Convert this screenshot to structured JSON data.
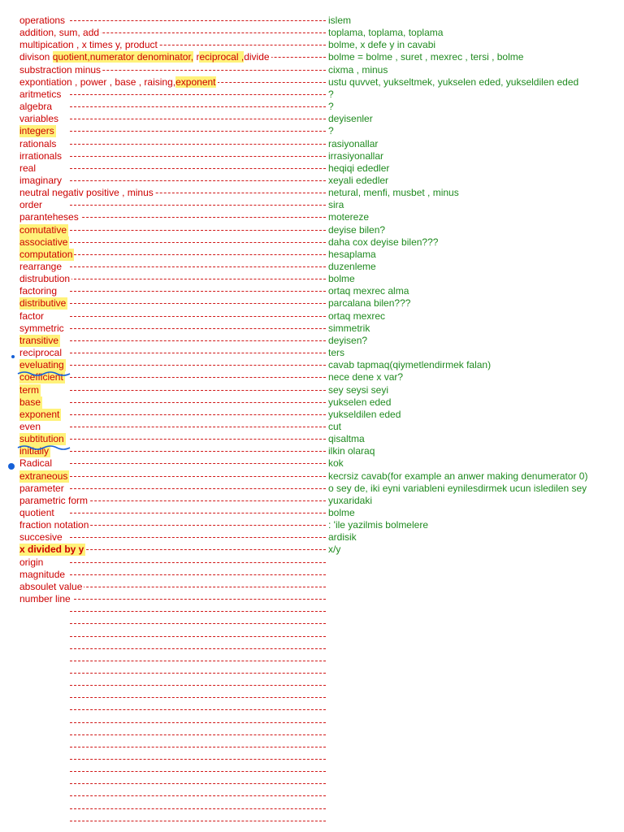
{
  "colors": {
    "term_text": "#cc0000",
    "definition_text": "#1f8a1f",
    "dashed_rule": "#d01818",
    "highlight": "#fff27a",
    "pen_ink": "#1560d8"
  },
  "rows": [
    {
      "term": "operations",
      "definition": "islem"
    },
    {
      "term": "addition, sum, add",
      "definition": "toplama, toplama, toplama"
    },
    {
      "term": "multipication , x times y, product",
      "definition": "bolme, x defe y in cavabi"
    },
    {
      "term_segments": [
        {
          "text": "divison  ",
          "hl": false
        },
        {
          "text": "quotient,numerator denominator,",
          "hl": true
        },
        {
          "text": " r",
          "hl": false
        },
        {
          "text": "eciprocal ,",
          "hl": true
        },
        {
          "text": "divide",
          "hl": false
        }
      ],
      "definition": "bolme =  bolme , suret , mexrec , tersi , bolme"
    },
    {
      "term": "substraction minus",
      "definition": "cixma , minus"
    },
    {
      "term_segments": [
        {
          "text": "expontiation , power , base , raising,",
          "hl": false
        },
        {
          "text": "exponent ",
          "hl": true
        }
      ],
      "definition": "ustu quvvet, yukseltmek, yukselen eded, yukseldilen eded"
    },
    {
      "term": "aritmetics",
      "definition": "?"
    },
    {
      "term": "algebra",
      "definition": "?"
    },
    {
      "term": "variables",
      "definition": "deyisenler"
    },
    {
      "term": "integers ",
      "highlight": true,
      "definition": "?"
    },
    {
      "term": "rationals",
      "definition": "rasiyonallar"
    },
    {
      "term": "irrationals",
      "definition": "irrasiyonallar"
    },
    {
      "term": "real",
      "definition": "heqiqi ededler"
    },
    {
      "term": "imaginary",
      "definition": "xeyali ededler"
    },
    {
      "term": "neutral negativ positive , minus",
      "definition": "netural, menfi, musbet , minus"
    },
    {
      "term": "order",
      "definition": "sira"
    },
    {
      "term": "paranteheses",
      "definition": "motereze"
    },
    {
      "term": "comutative",
      "highlight": true,
      "definition": "deyise bilen?"
    },
    {
      "term": "associative",
      "highlight": true,
      "definition": "daha cox deyise bilen???"
    },
    {
      "term": "computation",
      "highlight": true,
      "definition": "hesaplama"
    },
    {
      "term": "rearrange",
      "definition": "duzenleme"
    },
    {
      "term": "distrubution",
      "definition": "bolme"
    },
    {
      "term": "factoring",
      "definition": "ortaq mexrec alma"
    },
    {
      "term": "distributive",
      "highlight": true,
      "definition": "parcalana bilen???"
    },
    {
      "term": "factor",
      "definition": "ortaq mexrec"
    },
    {
      "term": "symmetric",
      "definition": "simmetrik"
    },
    {
      "term": "transitive",
      "highlight": true,
      "definition": "deyisen?"
    },
    {
      "term": "reciprocal",
      "definition": "ters"
    },
    {
      "term": "eveluating",
      "highlight": true,
      "definition": "cavab tapmaq(qiymetlendirmek falan)"
    },
    {
      "term": "coefficient",
      "highlight": true,
      "definition": "nece dene x var?"
    },
    {
      "term": "term",
      "highlight": true,
      "definition": "sey seysi seyi"
    },
    {
      "term": "base",
      "highlight": true,
      "definition": "yukselen eded"
    },
    {
      "term": "exponent ",
      "highlight": true,
      "definition": "yukseldilen eded"
    },
    {
      "term": "even",
      "definition": "cut"
    },
    {
      "term": "subtitution",
      "highlight": true,
      "definition": "qisaltma"
    },
    {
      "term": "initially",
      "highlight": true,
      "definition": "ilkin olaraq"
    },
    {
      "term": "Radical",
      "definition": "kok"
    },
    {
      "term": "extraneous",
      "highlight": true,
      "definition": "kecrsiz cavab(for example an anwer making denumerator 0)"
    },
    {
      "term": "parameter",
      "definition": "o sey de, iki eyni variableni eynilesdirmek ucun isledilen sey"
    },
    {
      "term": "parametric form",
      "definition": "yuxaridaki"
    },
    {
      "term": "quotient",
      "definition": "bolme"
    },
    {
      "term": "fraction notation ",
      "definition": "  : 'ile yazilmis bolmelere"
    },
    {
      "term": "succesive",
      "definition": "ardisik"
    },
    {
      "term": "x divided by y",
      "highlight": true,
      "bold": true,
      "definition": "x/y"
    },
    {
      "term": "origin",
      "definition": ""
    },
    {
      "term": "magnitude",
      "definition": ""
    },
    {
      "term": "absoulet value",
      "definition": ""
    },
    {
      "term": "number line",
      "definition": ""
    },
    {
      "term": "",
      "definition": ""
    },
    {
      "term": "",
      "definition": ""
    },
    {
      "term": "",
      "definition": ""
    },
    {
      "term": "",
      "definition": ""
    },
    {
      "term": "",
      "definition": ""
    },
    {
      "term": "",
      "definition": ""
    },
    {
      "term": "",
      "definition": ""
    },
    {
      "term": "",
      "definition": ""
    },
    {
      "term": "",
      "definition": ""
    },
    {
      "term": "",
      "definition": ""
    },
    {
      "term": "",
      "definition": ""
    },
    {
      "term": "",
      "definition": ""
    },
    {
      "term": "",
      "definition": ""
    },
    {
      "term": "",
      "definition": ""
    },
    {
      "term": "",
      "definition": ""
    },
    {
      "term": "",
      "definition": ""
    },
    {
      "term": "",
      "definition": ""
    },
    {
      "term": "",
      "definition": ""
    }
  ]
}
